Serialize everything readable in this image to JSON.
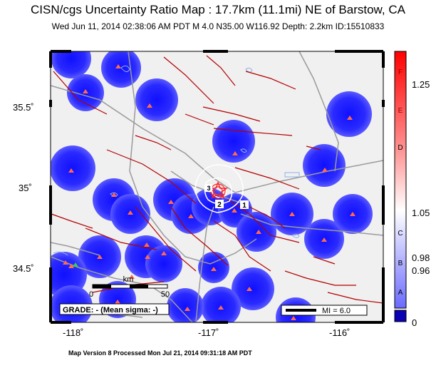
{
  "title": "CISN/cgs Uncertainty Ratio Map : 17.7km (11.1mi) NE of Barstow, CA",
  "subtitle": "Wed Jun 11, 2014 02:38:06 AM PDT   M 4.0   N35.00 W116.92   Depth: 2.2km   ID:15510833",
  "footer": "Map Version 8 Processed Mon Jul 21, 2014 09:31:18 AM PDT",
  "lat_labels": [
    "35.5˚",
    "35˚",
    "34.5˚"
  ],
  "lon_labels": [
    "-118˚",
    "-117˚",
    "-116˚"
  ],
  "grade_label": "GRADE: - (Mean sigma: -)",
  "mi_label": "MI = 6.0",
  "scale_bar": {
    "unit": "km",
    "start": "0",
    "end": "50"
  },
  "contour_labels": [
    "1",
    "2",
    "3"
  ],
  "colorbar": {
    "letters": [
      "F",
      "E",
      "D",
      "C",
      "B",
      "A"
    ],
    "values": [
      "1.25",
      "1.05",
      "0.98",
      "0.96",
      "0"
    ]
  },
  "colors": {
    "background": "#f0f0f0",
    "uncertainty_blob": "#1a1aff",
    "fault": "#b30000",
    "road": "#9a9a9a",
    "water": "#8fb0e6",
    "station": "#ff6a4d",
    "epicenter": "#ff2020",
    "contour": "#ffffff"
  }
}
